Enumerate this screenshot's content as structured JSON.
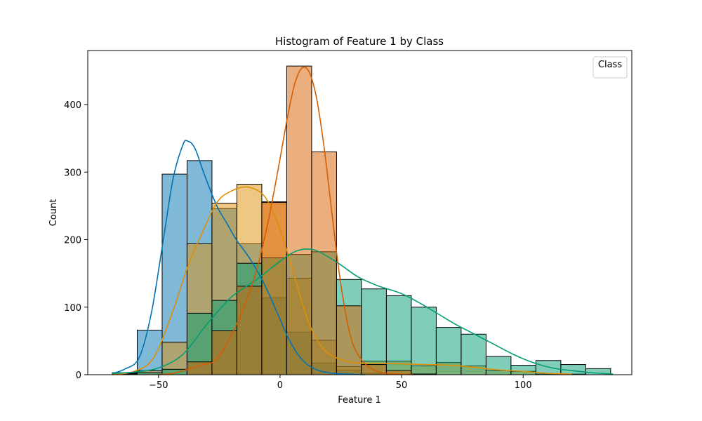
{
  "chart_data": {
    "type": "histogram",
    "title": "Histogram of Feature 1 by Class",
    "xlabel": "Feature 1",
    "ylabel": "Count",
    "xlim": [
      -79.1,
      144.7
    ],
    "ylim": [
      0,
      480
    ],
    "xticks": [
      {
        "value": -50,
        "label": "−50"
      },
      {
        "value": 0,
        "label": "0"
      },
      {
        "value": 50,
        "label": "50"
      },
      {
        "value": 100,
        "label": "100"
      }
    ],
    "yticks": [
      0,
      100,
      200,
      300,
      400
    ],
    "legend": {
      "title": "Class",
      "placement": "top-right"
    },
    "bins": {
      "start": -69,
      "width": 10.25,
      "count": 20
    },
    "series": [
      {
        "color": "#0173b2",
        "counts": [
          3,
          66,
          297,
          317,
          246,
          194,
          114,
          63,
          17,
          6,
          2,
          1,
          0,
          0,
          0,
          0,
          0,
          0,
          0,
          0
        ]
      },
      {
        "color": "#de8f05",
        "counts": [
          2,
          6,
          48,
          194,
          254,
          282,
          256,
          143,
          51,
          12,
          20,
          20,
          13,
          18,
          13,
          6,
          5,
          1,
          1,
          0
        ]
      },
      {
        "color": "#029e73",
        "counts": [
          1,
          3,
          8,
          91,
          110,
          165,
          173,
          178,
          182,
          141,
          127,
          117,
          100,
          70,
          60,
          27,
          14,
          21,
          15,
          9
        ]
      },
      {
        "color": "#d55e00",
        "counts": [
          0,
          0,
          0,
          19,
          65,
          131,
          255,
          457,
          330,
          102,
          15,
          6,
          1,
          0,
          0,
          0,
          0,
          0,
          0,
          0
        ]
      }
    ],
    "kde": [
      {
        "color": "#0173b2",
        "points": [
          [
            -69,
            2
          ],
          [
            -64,
            8
          ],
          [
            -58,
            25
          ],
          [
            -53,
            90
          ],
          [
            -48,
            200
          ],
          [
            -44,
            290
          ],
          [
            -40,
            340
          ],
          [
            -38,
            346
          ],
          [
            -35,
            335
          ],
          [
            -31,
            295
          ],
          [
            -26,
            250
          ],
          [
            -22,
            225
          ],
          [
            -18,
            200
          ],
          [
            -13,
            175
          ],
          [
            -8,
            145
          ],
          [
            -4,
            115
          ],
          [
            0,
            82
          ],
          [
            4,
            50
          ],
          [
            8,
            27
          ],
          [
            12,
            13
          ],
          [
            17,
            5
          ],
          [
            22,
            2
          ],
          [
            28,
            1
          ],
          [
            35,
            0
          ]
        ]
      },
      {
        "color": "#de8f05",
        "counts_note": "",
        "points": [
          [
            -69,
            0
          ],
          [
            -60,
            5
          ],
          [
            -52,
            25
          ],
          [
            -44,
            95
          ],
          [
            -38,
            160
          ],
          [
            -32,
            210
          ],
          [
            -26,
            255
          ],
          [
            -20,
            272
          ],
          [
            -14,
            278
          ],
          [
            -8,
            270
          ],
          [
            -4,
            250
          ],
          [
            0,
            215
          ],
          [
            4,
            170
          ],
          [
            8,
            120
          ],
          [
            12,
            75
          ],
          [
            17,
            42
          ],
          [
            22,
            27
          ],
          [
            30,
            18
          ],
          [
            40,
            17
          ],
          [
            50,
            16
          ],
          [
            60,
            15
          ],
          [
            70,
            14
          ],
          [
            80,
            11
          ],
          [
            90,
            7
          ],
          [
            100,
            5
          ],
          [
            110,
            2
          ],
          [
            120,
            1
          ]
        ]
      },
      {
        "color": "#029e73",
        "points": [
          [
            -69,
            2
          ],
          [
            -60,
            4
          ],
          [
            -50,
            10
          ],
          [
            -40,
            30
          ],
          [
            -30,
            75
          ],
          [
            -20,
            115
          ],
          [
            -10,
            140
          ],
          [
            0,
            168
          ],
          [
            6,
            182
          ],
          [
            11,
            186
          ],
          [
            16,
            182
          ],
          [
            24,
            165
          ],
          [
            32,
            145
          ],
          [
            40,
            132
          ],
          [
            50,
            120
          ],
          [
            58,
            105
          ],
          [
            65,
            90
          ],
          [
            72,
            75
          ],
          [
            80,
            60
          ],
          [
            88,
            45
          ],
          [
            96,
            30
          ],
          [
            104,
            18
          ],
          [
            112,
            10
          ],
          [
            120,
            6
          ],
          [
            128,
            3
          ],
          [
            137,
            1
          ]
        ]
      },
      {
        "color": "#d55e00",
        "points": [
          [
            -50,
            0
          ],
          [
            -44,
            2
          ],
          [
            -38,
            8
          ],
          [
            -32,
            15
          ],
          [
            -27,
            20
          ],
          [
            -22,
            45
          ],
          [
            -16,
            90
          ],
          [
            -10,
            150
          ],
          [
            -5,
            225
          ],
          [
            -1,
            300
          ],
          [
            3,
            380
          ],
          [
            6,
            430
          ],
          [
            9,
            454
          ],
          [
            12,
            448
          ],
          [
            15,
            410
          ],
          [
            18,
            340
          ],
          [
            21,
            250
          ],
          [
            24,
            160
          ],
          [
            27,
            90
          ],
          [
            30,
            45
          ],
          [
            34,
            20
          ],
          [
            38,
            8
          ],
          [
            42,
            3
          ],
          [
            48,
            1
          ],
          [
            55,
            0
          ]
        ]
      }
    ]
  }
}
